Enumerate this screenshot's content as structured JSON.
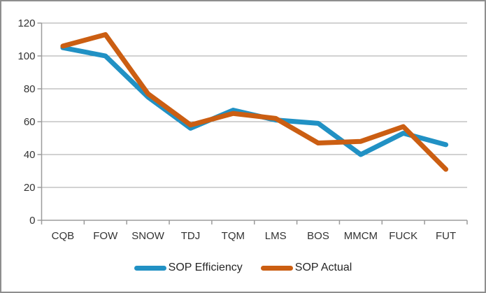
{
  "frame": {
    "background": "#ffffff",
    "border_color": "#8e8e8e"
  },
  "chart_data": {
    "type": "line",
    "title": "",
    "categories": [
      "CQB",
      "FOW",
      "SNOW",
      "TDJ",
      "TQM",
      "LMS",
      "BOS",
      "MMCM",
      "FUCK",
      "FUT"
    ],
    "series": [
      {
        "name": "SOP Efficiency",
        "color": "#2191c4",
        "values": [
          105,
          100,
          75,
          56,
          67,
          61,
          59,
          40,
          53,
          46
        ]
      },
      {
        "name": "SOP Actual",
        "color": "#cb5e12",
        "values": [
          106,
          113,
          77,
          58,
          65,
          62,
          47,
          48,
          57,
          31
        ]
      }
    ],
    "ylim": [
      0,
      120
    ],
    "yticks": [
      0,
      20,
      40,
      60,
      80,
      100,
      120
    ],
    "grid": true,
    "legend_position": "bottom",
    "grid_color": "#a6a6a6",
    "axis_color": "#9b9b9b",
    "label_color": "#333333",
    "legend_text_color": "#262626",
    "line_width": 7
  }
}
